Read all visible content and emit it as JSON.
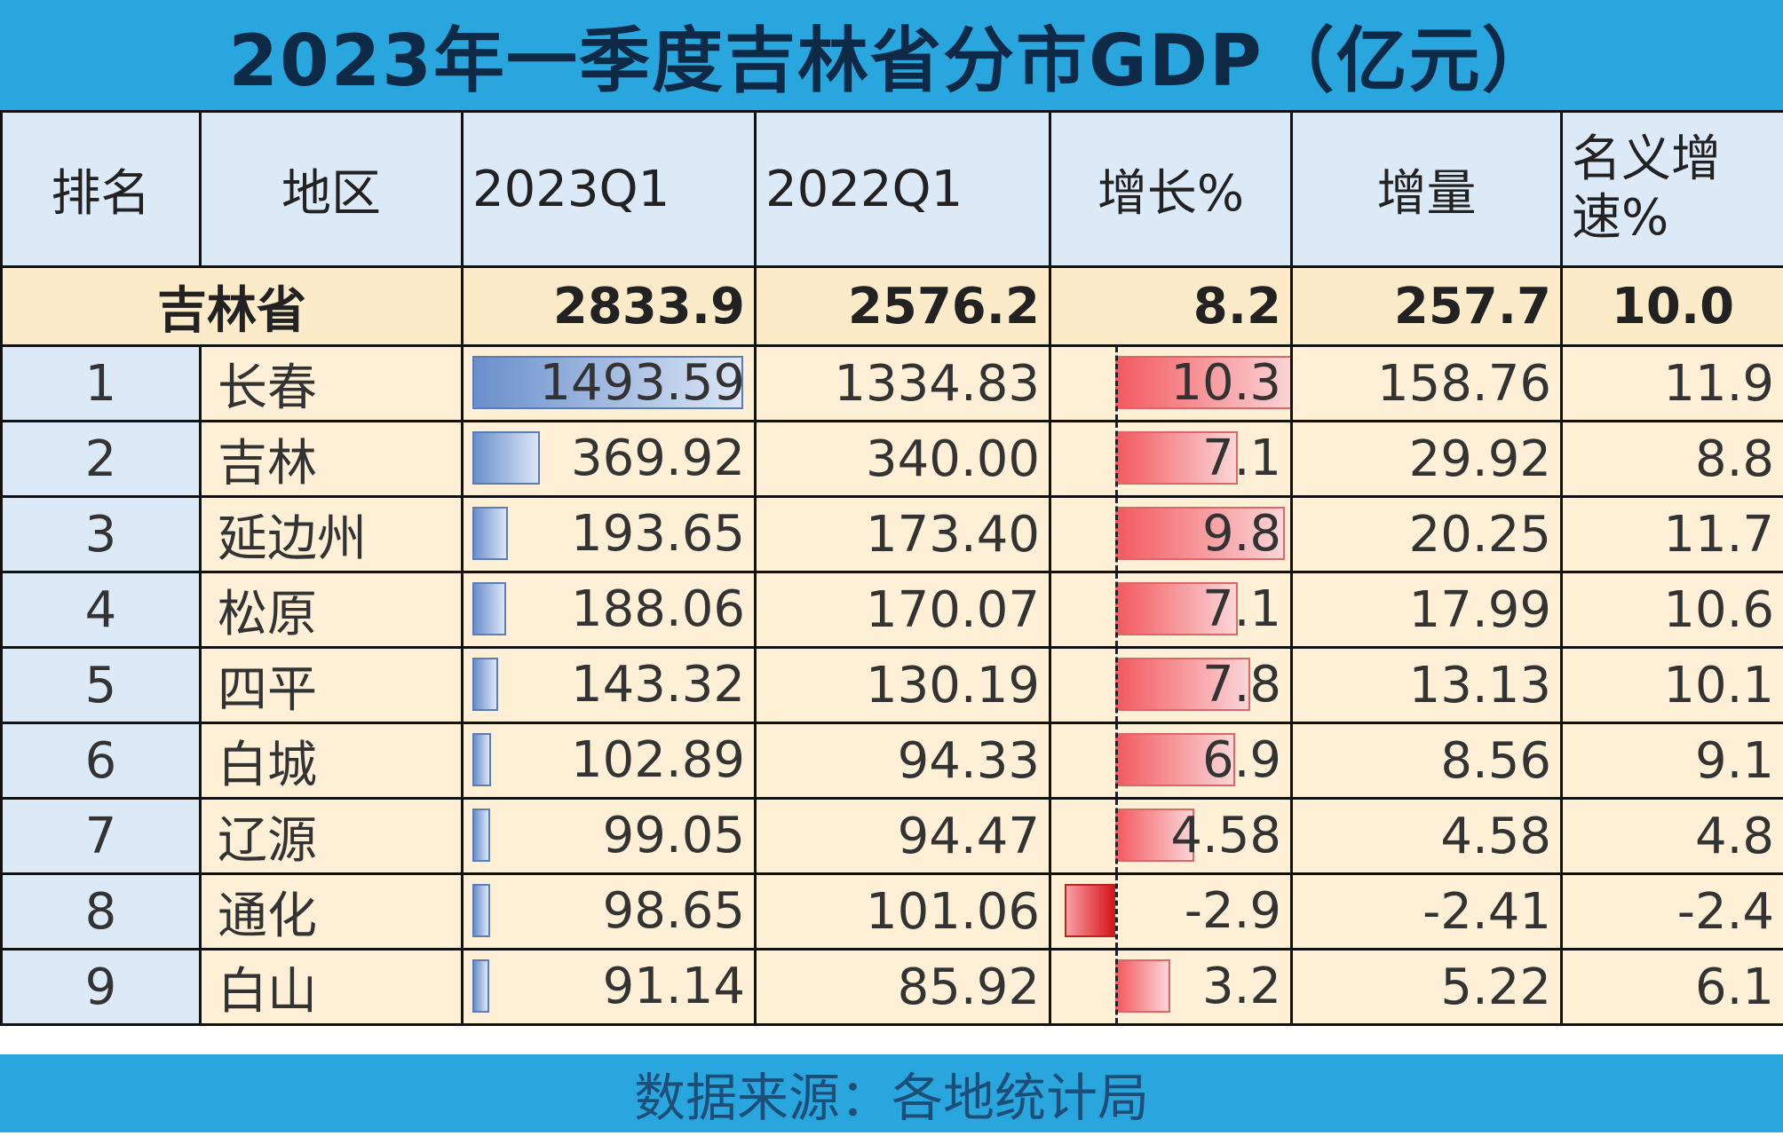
{
  "title": "2023年一季度吉林省分市GDP（亿元）",
  "footer": "数据来源：各地统计局",
  "colors": {
    "header_bar": "#2aa6df",
    "header_cells": "#dce9f6",
    "body_cells": "#fdf0d6",
    "gdp_bar": "#6a8fcc",
    "growth_bar": "#f25a60"
  },
  "chart_data": {
    "type": "table",
    "columns": [
      "排名",
      "地区",
      "2023Q1",
      "2022Q1",
      "增长%",
      "增量",
      "名义增速%"
    ],
    "total": {
      "region": "吉林省",
      "q2023": "2833.9",
      "q2022": "2576.2",
      "growth": "8.2",
      "increase": "257.7",
      "nominal": "10.0"
    },
    "rows": [
      {
        "rank": "1",
        "region": "长春",
        "q2023": "1493.59",
        "q2022": "1334.83",
        "growth": "10.3",
        "increase": "158.76",
        "nominal": "11.9"
      },
      {
        "rank": "2",
        "region": "吉林",
        "q2023": "369.92",
        "q2022": "340.00",
        "growth": "7.1",
        "increase": "29.92",
        "nominal": "8.8"
      },
      {
        "rank": "3",
        "region": "延边州",
        "q2023": "193.65",
        "q2022": "173.40",
        "growth": "9.8",
        "increase": "20.25",
        "nominal": "11.7"
      },
      {
        "rank": "4",
        "region": "松原",
        "q2023": "188.06",
        "q2022": "170.07",
        "growth": "7.1",
        "increase": "17.99",
        "nominal": "10.6"
      },
      {
        "rank": "5",
        "region": "四平",
        "q2023": "143.32",
        "q2022": "130.19",
        "growth": "7.8",
        "increase": "13.13",
        "nominal": "10.1"
      },
      {
        "rank": "6",
        "region": "白城",
        "q2023": "102.89",
        "q2022": "94.33",
        "growth": "6.9",
        "increase": "8.56",
        "nominal": "9.1"
      },
      {
        "rank": "7",
        "region": "辽源",
        "q2023": "99.05",
        "q2022": "94.47",
        "growth": "4.58",
        "increase": "4.58",
        "nominal": "4.8"
      },
      {
        "rank": "8",
        "region": "通化",
        "q2023": "98.65",
        "q2022": "101.06",
        "growth": "-2.9",
        "increase": "-2.41",
        "nominal": "-2.4"
      },
      {
        "rank": "9",
        "region": "白山",
        "q2023": "91.14",
        "q2022": "85.92",
        "growth": "3.2",
        "increase": "5.22",
        "nominal": "6.1"
      }
    ]
  }
}
